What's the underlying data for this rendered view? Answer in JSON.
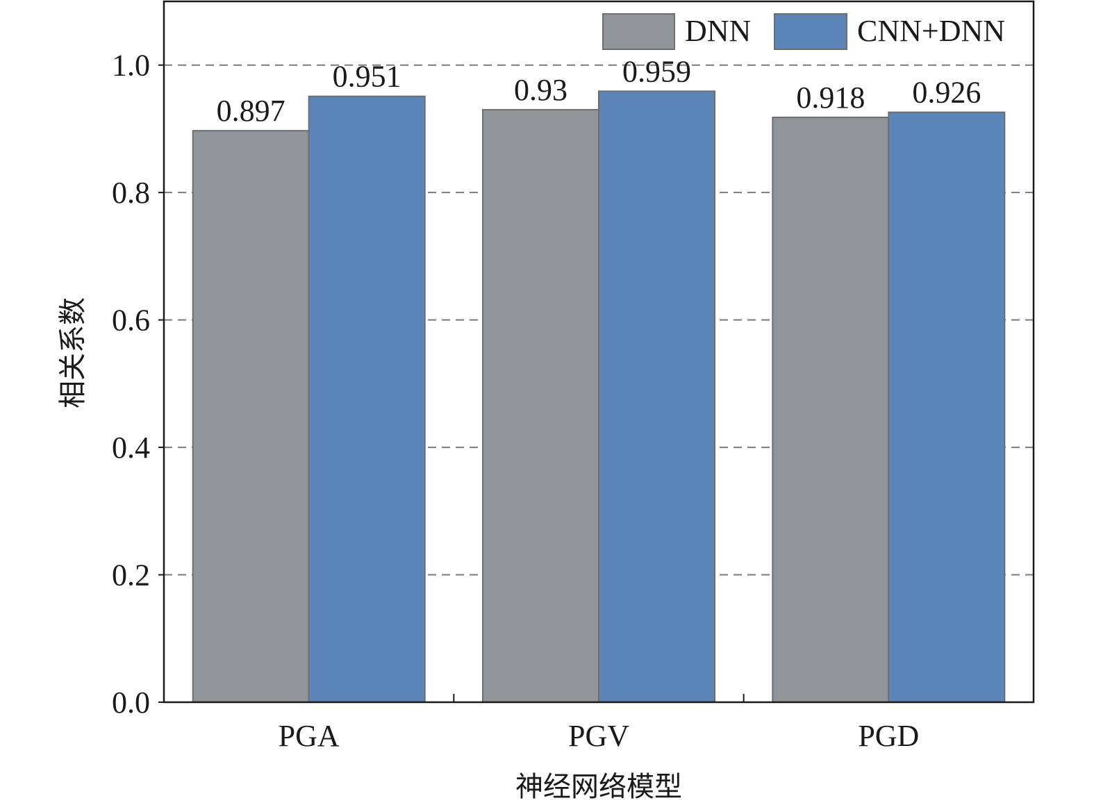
{
  "chart_data": {
    "type": "bar",
    "categories": [
      "PGA",
      "PGV",
      "PGD"
    ],
    "series": [
      {
        "name": "DNN",
        "values": [
          0.897,
          0.93,
          0.918
        ],
        "labels": [
          "0.897",
          "0.93",
          "0.918"
        ],
        "color": "#919499"
      },
      {
        "name": "CNN+DNN",
        "values": [
          0.951,
          0.959,
          0.926
        ],
        "labels": [
          "0.951",
          "0.959",
          "0.926"
        ],
        "color": "#5d86b8"
      }
    ],
    "xlabel": "神经网络模型",
    "ylabel": "相关系数",
    "ylim": [
      0,
      1.1
    ],
    "yticks": [
      0.0,
      0.2,
      0.4,
      0.6,
      0.8,
      1.0
    ],
    "ytick_labels": [
      "0.0",
      "0.2",
      "0.4",
      "0.6",
      "0.8",
      "1.0"
    ],
    "grid": "horizontal dashed",
    "legend_position": "top-right"
  }
}
